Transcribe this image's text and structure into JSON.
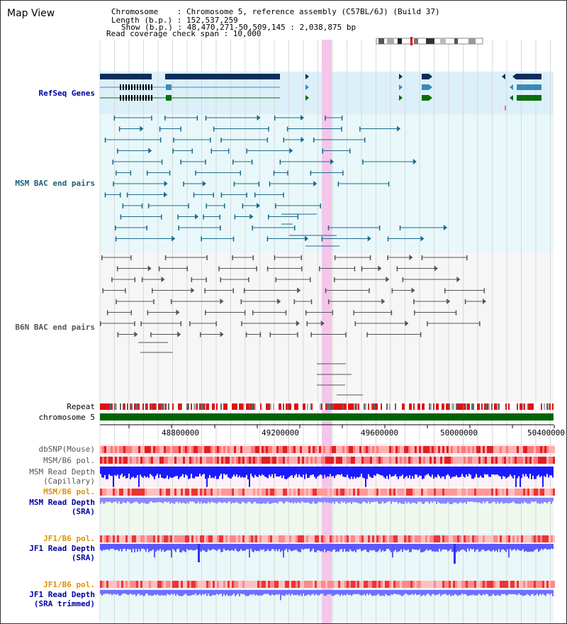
{
  "header": {
    "title": "Map View",
    "chromosome_line": "Chromosome    : Chromosome 5, reference assembly (C57BL/6J) (Build 37)",
    "length_line": "Length (b.p.) : 152,537,259",
    "show_line": "Show (b.p.) : 48,470,271-50,509,145 : 2,038,875 bp",
    "coverage_line": "Read coverage check span : 10,000"
  },
  "tracks": {
    "refseq": "RefSeq Genes",
    "msm_bac": "MSM BAC end pairs",
    "b6n_bac": "B6N BAC end pairs",
    "repeat": "Repeat",
    "chromosome": "chromosome 5",
    "dbsnp": "dbSNP(Mouse)",
    "msm_b6_pol_1": "MSM/B6 pol.",
    "msm_depth_cap_1": "MSM Read Depth",
    "msm_depth_cap_2": "(Capillary)",
    "msm_b6_pol_2": "MSM/B6 pol.",
    "msm_depth_sra_1": "MSM Read Depth",
    "msm_depth_sra_2": "(SRA)",
    "jf1_b6_pol_1": "JF1/B6 pol.",
    "jf1_depth_sra_1": "JF1 Read Depth",
    "jf1_depth_sra_2": "(SRA)",
    "jf1_b6_pol_2": "JF1/B6 pol.",
    "jf1_depth_trim_1": "JF1 Read Depth",
    "jf1_depth_trim_2": "(SRA trimmed)"
  },
  "axis": {
    "ticks": [
      "48800000",
      "49200000",
      "49600000",
      "50000000",
      "50400000"
    ]
  },
  "colors": {
    "refseq_dark": "#0a2e5c",
    "refseq_mid": "#3a8ab8",
    "refseq_green": "#0a6e0a",
    "msm_pair": "#1a6a8a",
    "b6n_pair": "#555555",
    "chromosome": "#006400",
    "highlight": "#f4c6ea",
    "depth_blue": "#1a1aff",
    "depth_light": "#8888ff"
  }
}
